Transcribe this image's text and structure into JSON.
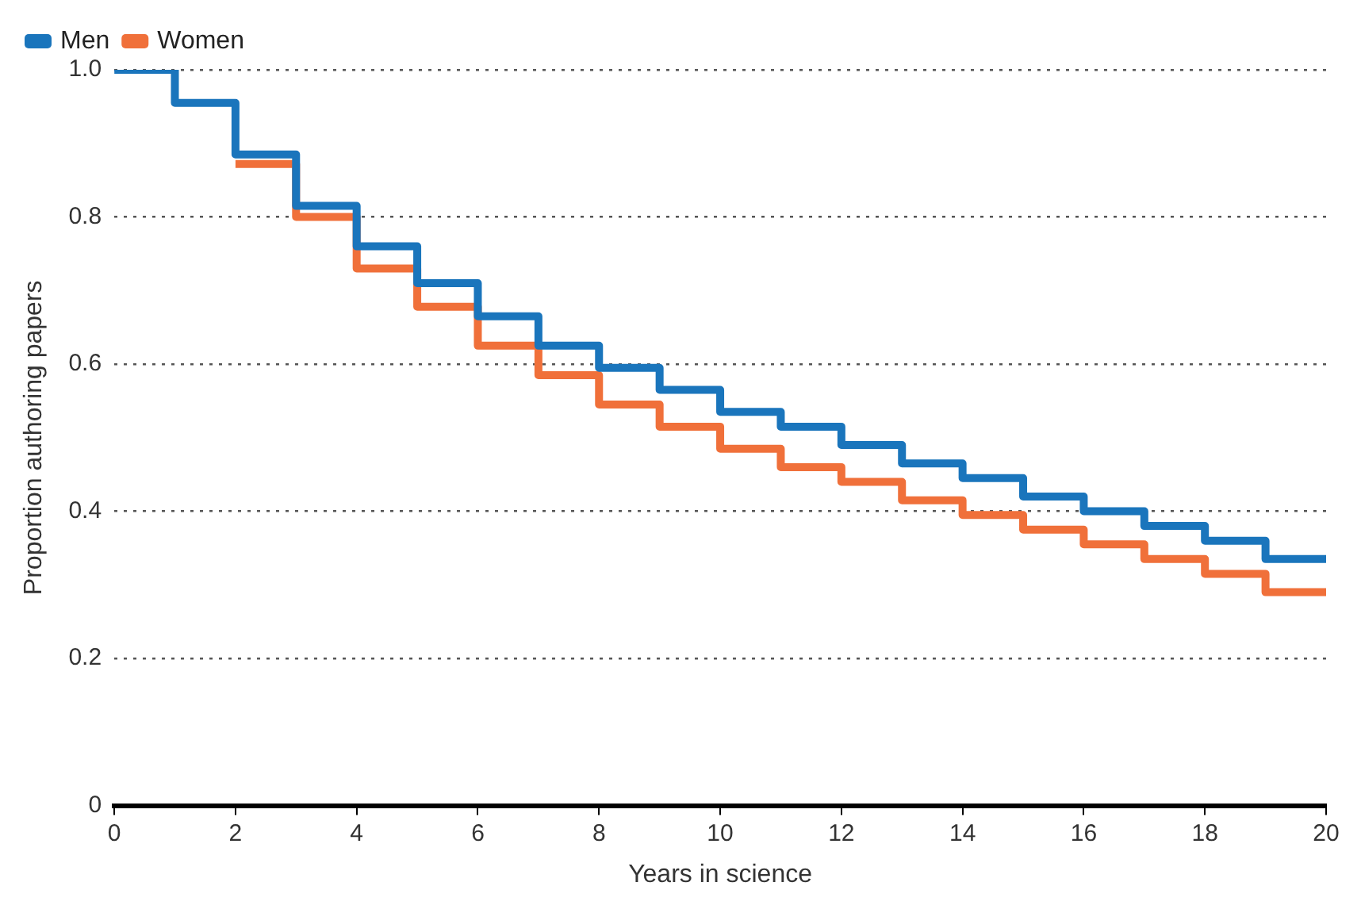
{
  "chart_data": {
    "type": "step",
    "xlabel": "Years in science",
    "ylabel": "Proportion authoring papers",
    "x": [
      0,
      1,
      2,
      3,
      4,
      5,
      6,
      7,
      8,
      9,
      10,
      11,
      12,
      13,
      14,
      15,
      16,
      17,
      18,
      19,
      20
    ],
    "series": [
      {
        "name": "Men",
        "color": "#1a75bc",
        "values": [
          1.0,
          0.955,
          0.885,
          0.815,
          0.76,
          0.71,
          0.665,
          0.625,
          0.595,
          0.565,
          0.535,
          0.515,
          0.49,
          0.465,
          0.445,
          0.42,
          0.4,
          0.38,
          0.36,
          0.335,
          0.335
        ]
      },
      {
        "name": "Women",
        "color": "#f0703a",
        "values": [
          null,
          null,
          0.872,
          0.8,
          0.73,
          0.678,
          0.625,
          0.585,
          0.545,
          0.515,
          0.485,
          0.46,
          0.44,
          0.415,
          0.395,
          0.375,
          0.355,
          0.335,
          0.315,
          0.29,
          0.29
        ]
      }
    ],
    "xlim": [
      0,
      20
    ],
    "xticks": [
      0,
      2,
      4,
      6,
      8,
      10,
      12,
      14,
      16,
      18,
      20
    ],
    "ylim": [
      0,
      1.0
    ],
    "yticks": [
      0,
      {
        "value": 0.2,
        "label": "0.2"
      },
      {
        "value": 0.4,
        "label": "0.4"
      },
      {
        "value": 0.6,
        "label": "0.6"
      },
      {
        "value": 0.8,
        "label": "0.8"
      },
      {
        "value": 1.0,
        "label": "1.0"
      }
    ],
    "grid": "y",
    "legend": "top left",
    "marker": "none",
    "line_style": "solid"
  }
}
